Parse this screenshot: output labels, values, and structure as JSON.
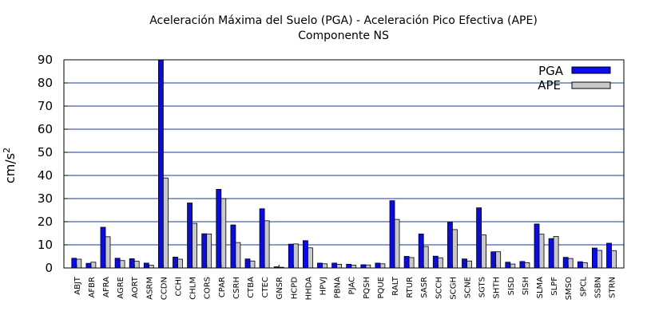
{
  "chart_data": {
    "type": "bar",
    "title": "Aceleración Máxima del Suelo (PGA) -   Aceleración Pico Efectiva (APE)",
    "subtitle": "Componente NS",
    "xlabel": "",
    "ylabel": "cm/s",
    "ylabel_superscript": "2",
    "ylim": [
      0,
      90
    ],
    "yticks": [
      0,
      10,
      20,
      30,
      40,
      50,
      60,
      70,
      80,
      90
    ],
    "grid": "horizontal",
    "legend_position": "top-right",
    "categories": [
      "ABJT",
      "AFBR",
      "AFRA",
      "AGRE",
      "AORT",
      "ASRM",
      "CCDN",
      "CCHI",
      "CHLM",
      "CORS",
      "CPAR",
      "CSRH",
      "CTBA",
      "CTEC",
      "GNSR",
      "HCPD",
      "HHDA",
      "HPVJ",
      "PBNA",
      "PJAC",
      "PQSH",
      "PQUE",
      "RALT",
      "RTUR",
      "SASR",
      "SCCH",
      "SCGH",
      "SCNE",
      "SGTS",
      "SHTH",
      "SISD",
      "SISH",
      "SLMA",
      "SLPF",
      "SMSO",
      "SPCL",
      "SSBN",
      "STRN"
    ],
    "series": [
      {
        "name": "PGA",
        "color": "#0a0af0",
        "values": [
          4.2,
          2.0,
          17.6,
          4.2,
          4.0,
          2.1,
          90.0,
          4.7,
          28.1,
          14.8,
          34.0,
          18.6,
          3.9,
          25.6,
          0.5,
          10.3,
          11.8,
          2.1,
          2.1,
          1.6,
          1.4,
          2.1,
          29.1,
          5.0,
          14.7,
          5.1,
          19.7,
          3.9,
          26.0,
          7.0,
          2.5,
          2.8,
          19.0,
          12.7,
          4.6,
          2.7,
          8.6,
          10.7
        ]
      },
      {
        "name": "APE",
        "color": "#c8c8c8",
        "values": [
          3.8,
          2.5,
          13.5,
          3.2,
          2.9,
          1.2,
          38.9,
          3.8,
          19.3,
          14.7,
          30.0,
          11.0,
          3.0,
          20.4,
          0.3,
          10.4,
          8.7,
          1.8,
          1.6,
          1.2,
          1.3,
          1.8,
          21.0,
          4.5,
          9.3,
          4.4,
          16.6,
          3.0,
          14.3,
          7.0,
          1.7,
          2.3,
          14.6,
          13.6,
          4.1,
          2.3,
          7.6,
          7.5
        ]
      }
    ]
  }
}
